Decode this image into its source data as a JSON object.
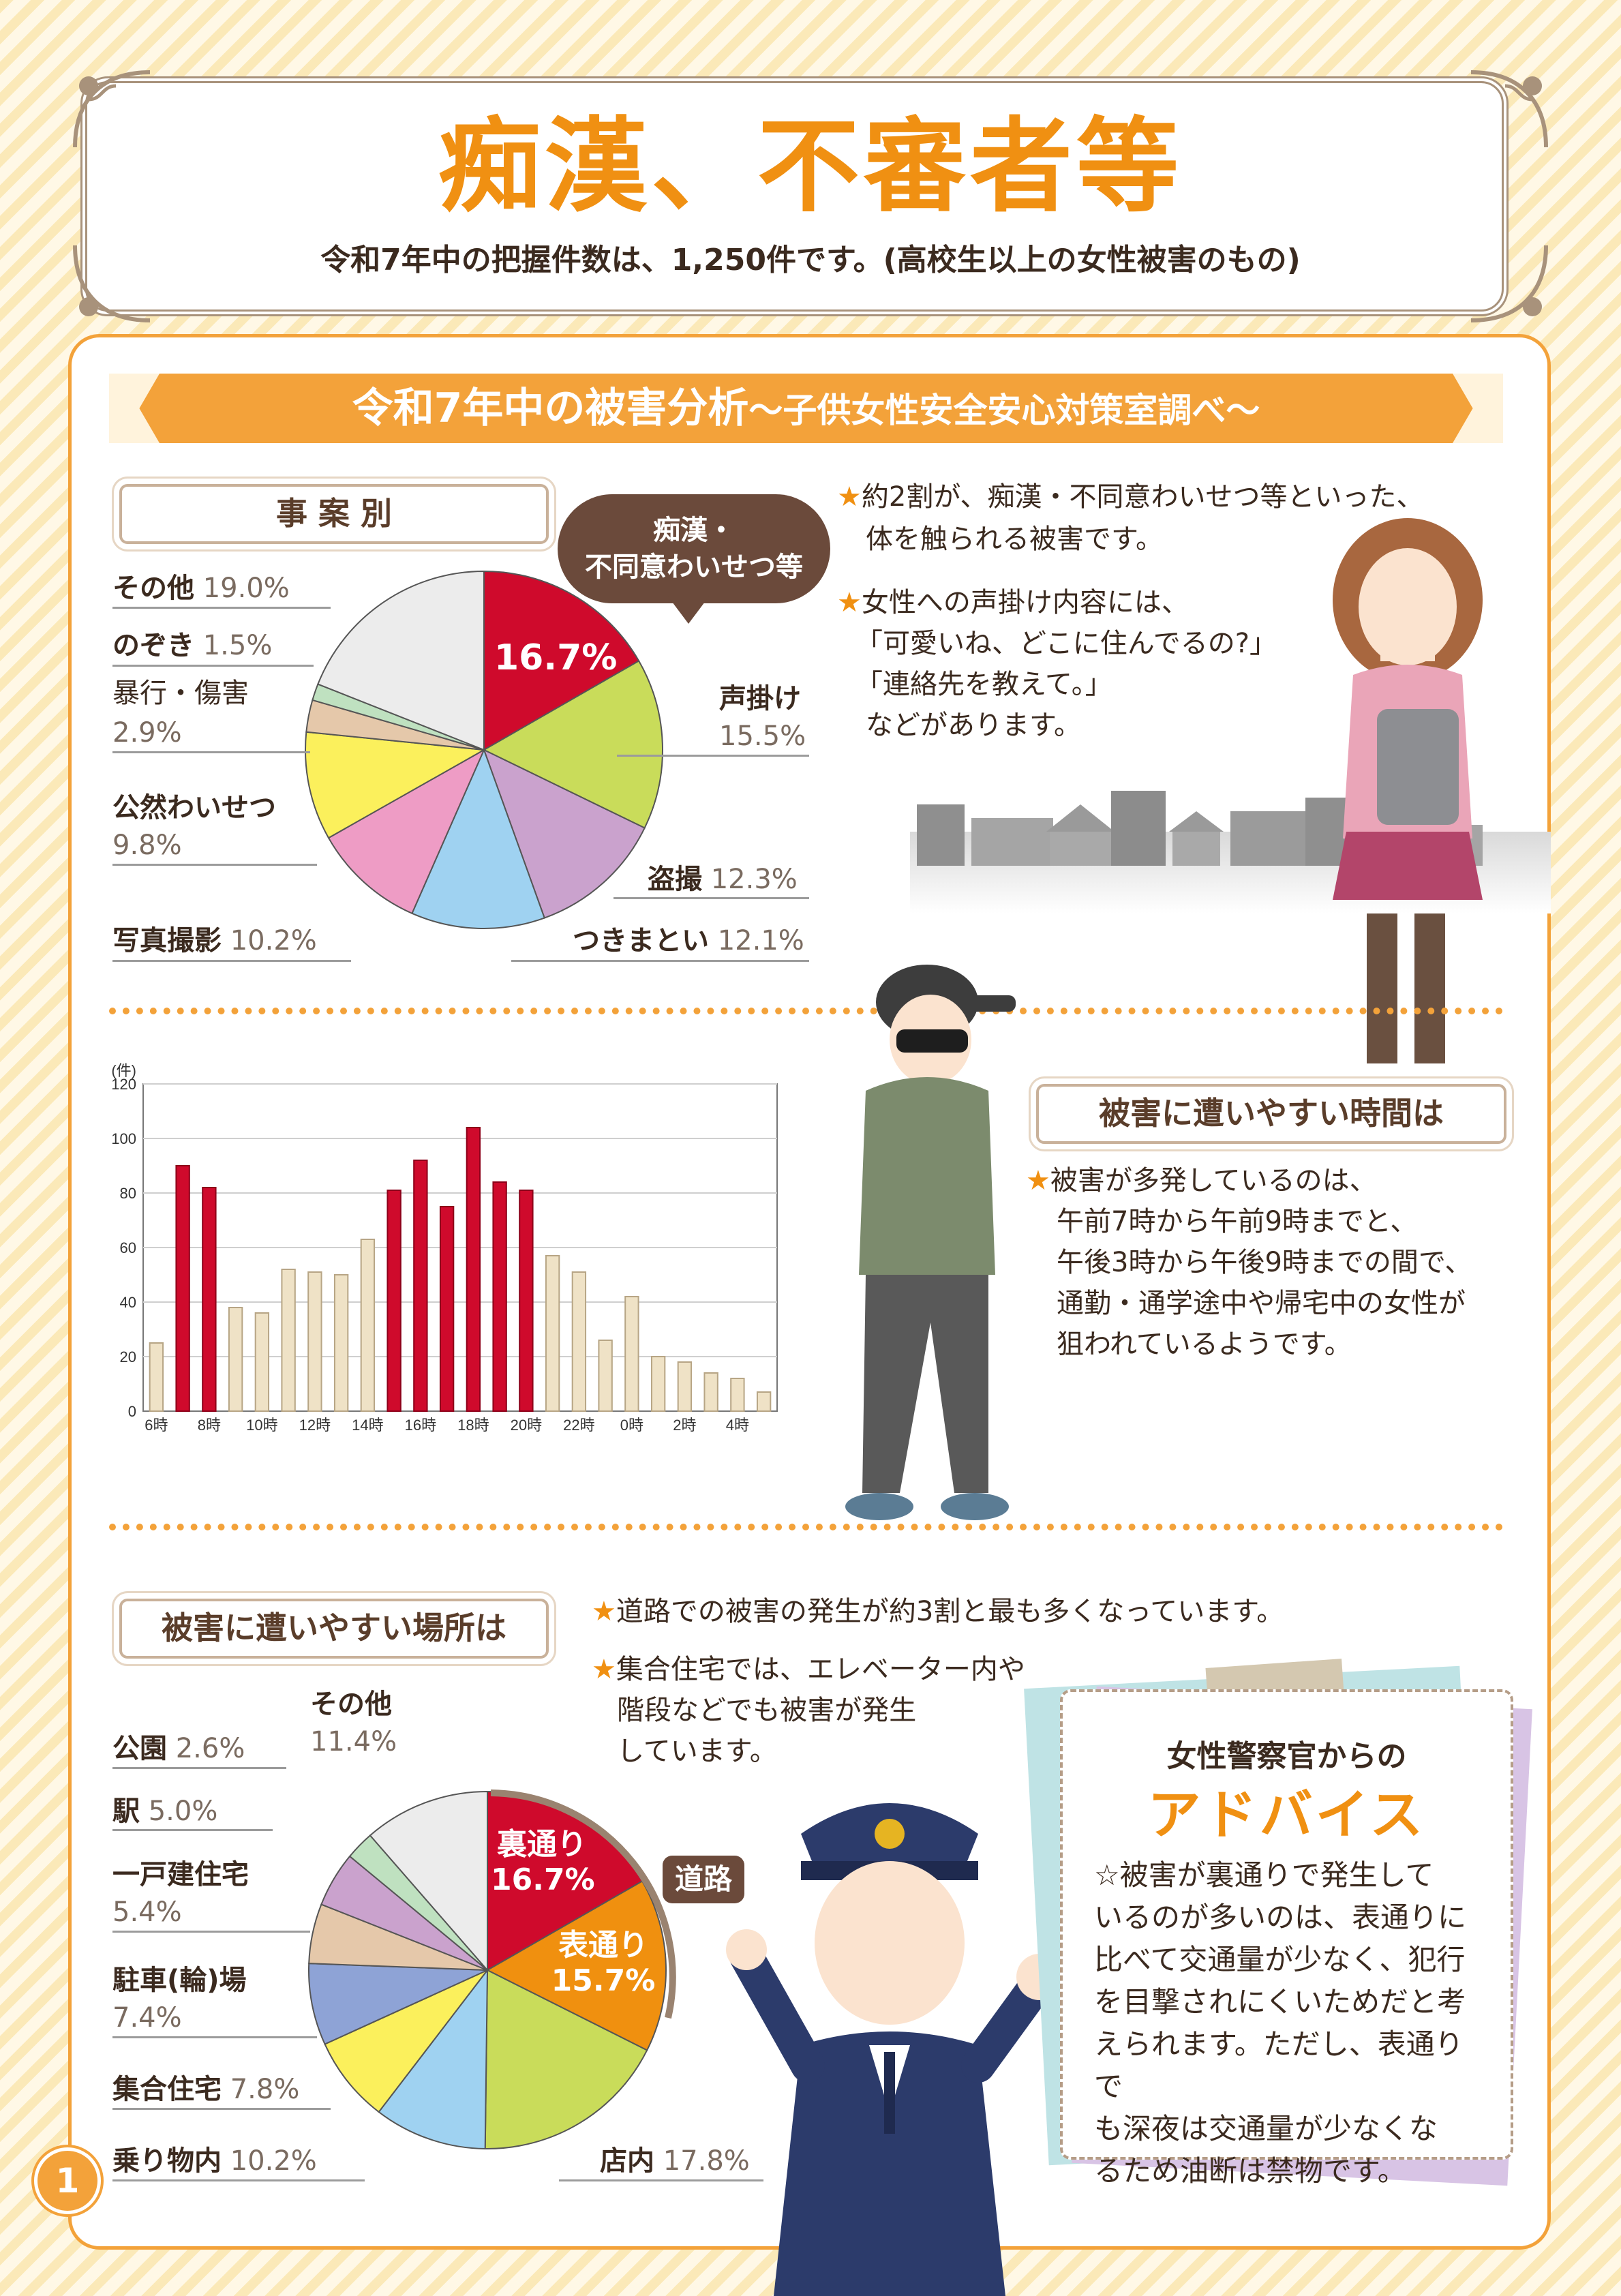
{
  "header": {
    "title": "痴漢、不審者等",
    "subtitle": "令和7年中の把握件数は、1,250件です。(高校生以上の女性被害のもの)"
  },
  "banner": {
    "main": "令和7年中の被害分析",
    "sub": "～子供女性安全安心対策室調べ～"
  },
  "incident_section": {
    "label": "事 案 別",
    "bubble_line1": "痴漢・",
    "bubble_line2": "不同意わいせつ等",
    "center_value": "16.7%",
    "labels": {
      "other_name": "その他",
      "other_value": "19.0%",
      "peeping_name": "のぞき",
      "peeping_value": "1.5%",
      "violence_name": "暴行・傷害",
      "violence_value": "2.9%",
      "indecent_name": "公然わいせつ",
      "indecent_value": "9.8%",
      "photo_name": "写真撮影",
      "photo_value": "10.2%",
      "stalking_name": "つきまとい",
      "stalking_value": "12.1%",
      "voyeur_name": "盗撮",
      "voyeur_value": "12.3%",
      "catcall_name": "声掛け",
      "catcall_value": "15.5%"
    },
    "bullets": [
      "約2割が、痴漢・不同意わいせつ等といった、",
      "体を触られる被害です。",
      "女性への声掛け内容には、",
      "「可愛いね、どこに住んでるの?」",
      "「連絡先を教えて。」",
      "などがあります。"
    ]
  },
  "time_section": {
    "label": "被害に遭いやすい時間は",
    "bullets": [
      "被害が多発しているのは、",
      "午前7時から午前9時までと、",
      "午後3時から午後9時までの間で、",
      "通勤・通学途中や帰宅中の女性が",
      "狙われているようです。"
    ]
  },
  "place_section": {
    "label": "被害に遭いやすい場所は",
    "bullets": [
      "道路での被害の発生が約3割と最も多くなっています。",
      "集合住宅では、エレベーター内や",
      "階段などでも被害が発生",
      "しています。"
    ],
    "road_tag": "道路",
    "inner": {
      "back_name": "裏通り",
      "back_value": "16.7%",
      "front_name": "表通り",
      "front_value": "15.7%"
    },
    "labels": {
      "other_name": "その他",
      "other_value": "11.4%",
      "park_name": "公園",
      "park_value": "2.6%",
      "station_name": "駅",
      "station_value": "5.0%",
      "house_name": "一戸建住宅",
      "house_value": "5.4%",
      "parking_name": "駐車(輪)場",
      "parking_value": "7.4%",
      "apartment_name": "集合住宅",
      "apartment_value": "7.8%",
      "vehicle_name": "乗り物内",
      "vehicle_value": "10.2%",
      "store_name": "店内",
      "store_value": "17.8%"
    }
  },
  "advice": {
    "heading": "女性警察官からの",
    "title": "アドバイス",
    "lines": [
      "☆被害が裏通りで発生して",
      "いるのが多いのは、表通りに",
      "比べて交通量が少なく、犯行",
      "を目撃されにくいためだと考",
      "えられます。ただし、表通りで",
      "も深夜は交通量が少なくな",
      "るため油断は禁物です。"
    ]
  },
  "page_number": "1",
  "colors": {
    "accent": "#f3a23a",
    "title_orange": "#f09012",
    "bar_highlight": "#cf0a2c",
    "bar_normal": "#efe2c6"
  },
  "chart_data": [
    {
      "type": "pie",
      "title": "事 案 別",
      "categories": [
        "痴漢・不同意わいせつ等",
        "声掛け",
        "盗撮",
        "つきまとい",
        "写真撮影",
        "公然わいせつ",
        "暴行・傷害",
        "のぞき",
        "その他"
      ],
      "values": [
        16.7,
        15.5,
        12.3,
        12.1,
        10.2,
        9.8,
        2.9,
        1.5,
        19.0
      ],
      "colors": [
        "#cf0a2c",
        "#c9dc5a",
        "#caa2cd",
        "#9fd2f1",
        "#ee9cc5",
        "#fbf05c",
        "#e5c8aa",
        "#bfe1c0",
        "#ececec"
      ]
    },
    {
      "type": "bar",
      "ylabel": "(件)",
      "ylim": [
        0,
        120
      ],
      "yticks": [
        0,
        20,
        40,
        60,
        80,
        100,
        120
      ],
      "categories": [
        "6時",
        "7時",
        "8時",
        "9時",
        "10時",
        "11時",
        "12時",
        "13時",
        "14時",
        "15時",
        "16時",
        "17時",
        "18時",
        "19時",
        "20時",
        "21時",
        "22時",
        "23時",
        "0時",
        "1時",
        "2時",
        "3時",
        "4時",
        "5時"
      ],
      "tick_labels": [
        "6時",
        "",
        "8時",
        "",
        "10時",
        "",
        "12時",
        "",
        "14時",
        "",
        "16時",
        "",
        "18時",
        "",
        "20時",
        "",
        "22時",
        "",
        "0時",
        "",
        "2時",
        "",
        "4時",
        ""
      ],
      "values": [
        25,
        90,
        82,
        38,
        36,
        52,
        51,
        50,
        63,
        81,
        92,
        75,
        104,
        84,
        81,
        57,
        51,
        26,
        42,
        20,
        18,
        14,
        12,
        7
      ],
      "highlight": [
        false,
        true,
        true,
        false,
        false,
        false,
        false,
        false,
        false,
        true,
        true,
        true,
        true,
        true,
        true,
        false,
        false,
        false,
        false,
        false,
        false,
        false,
        false,
        false
      ]
    },
    {
      "type": "pie",
      "title": "被害に遭いやすい場所は",
      "categories": [
        "裏通り",
        "表通り",
        "店内",
        "乗り物内",
        "集合住宅",
        "駐車(輪)場",
        "一戸建住宅",
        "駅",
        "公園",
        "その他"
      ],
      "values": [
        16.7,
        15.7,
        17.8,
        10.2,
        7.8,
        7.4,
        5.4,
        5.0,
        2.6,
        11.4
      ],
      "colors": [
        "#cf0a2c",
        "#f0900f",
        "#c9dc5a",
        "#9fd2f1",
        "#fbf05c",
        "#8ea3d6",
        "#e5c8aa",
        "#caa2cd",
        "#bfe1c0",
        "#ececec"
      ]
    }
  ]
}
